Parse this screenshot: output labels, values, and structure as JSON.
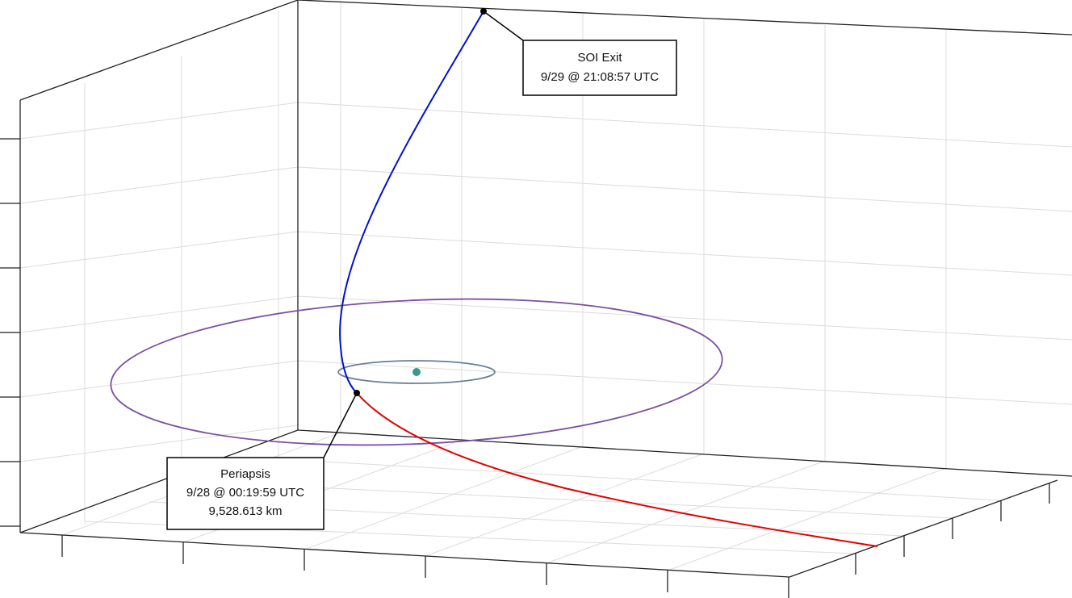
{
  "annotations": [
    {
      "lines": [
        "SOI Exit",
        "9/29 @ 21:08:57 UTC"
      ]
    },
    {
      "lines": [
        "Periapsis",
        "9/28 @ 00:19:59 UTC",
        "9,528.613 km"
      ]
    }
  ]
}
